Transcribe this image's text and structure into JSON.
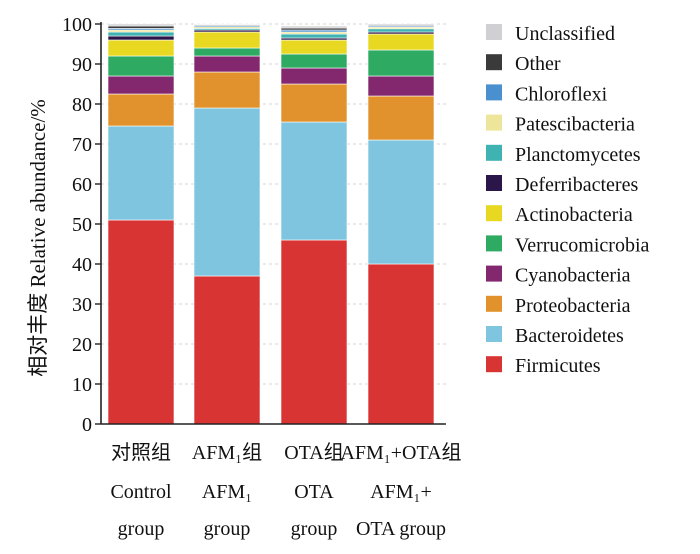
{
  "chart_data": {
    "type": "bar",
    "stacked": true,
    "ylabel": "相对丰度 Relative abundance/%",
    "ylim": [
      0,
      100
    ],
    "yticks": [
      0,
      10,
      20,
      30,
      40,
      50,
      60,
      70,
      80,
      90,
      100
    ],
    "grid": true,
    "legend_position": "right",
    "categories": [
      {
        "lines": [
          "对照组",
          "Control",
          "group"
        ]
      },
      {
        "lines": [
          "AFM₁组",
          "AFM₁",
          "group"
        ]
      },
      {
        "lines": [
          "OTA组",
          "OTA",
          "group"
        ]
      },
      {
        "lines": [
          "AFM₁+OTA组",
          "AFM₁+",
          "OTA group"
        ]
      }
    ],
    "series": [
      {
        "name": "Firmicutes",
        "color": "#d93434",
        "values": [
          51.0,
          37.0,
          46.0,
          40.0
        ]
      },
      {
        "name": "Bacteroidetes",
        "color": "#80c5e0",
        "values": [
          23.5,
          42.0,
          29.5,
          31.0
        ]
      },
      {
        "name": "Proteobacteria",
        "color": "#e2922c",
        "values": [
          8.0,
          9.0,
          9.5,
          11.0
        ]
      },
      {
        "name": "Cyanobacteria",
        "color": "#83286e",
        "values": [
          4.5,
          4.0,
          4.0,
          5.0
        ]
      },
      {
        "name": "Verrucomicrobia",
        "color": "#2faa62",
        "values": [
          5.0,
          2.0,
          3.5,
          6.5
        ]
      },
      {
        "name": "Actinobacteria",
        "color": "#e8d821",
        "values": [
          4.0,
          4.0,
          3.5,
          4.0
        ]
      },
      {
        "name": "Deferribacteres",
        "color": "#2a1648",
        "values": [
          1.0,
          0.5,
          0.5,
          0.5
        ]
      },
      {
        "name": "Planctomycetes",
        "color": "#3fb2b2",
        "values": [
          1.0,
          0.4,
          1.0,
          0.8
        ]
      },
      {
        "name": "Patescibacteria",
        "color": "#ede59a",
        "values": [
          0.5,
          0.4,
          0.5,
          0.4
        ]
      },
      {
        "name": "Chloroflexi",
        "color": "#4a8fce",
        "values": [
          0.4,
          0.3,
          0.5,
          0.3
        ]
      },
      {
        "name": "Other",
        "color": "#3a3a3a",
        "values": [
          0.6,
          0.2,
          0.5,
          0.2
        ]
      },
      {
        "name": "Unclassified",
        "color": "#cfcfd4",
        "values": [
          0.5,
          0.2,
          0.5,
          0.3
        ]
      }
    ]
  }
}
